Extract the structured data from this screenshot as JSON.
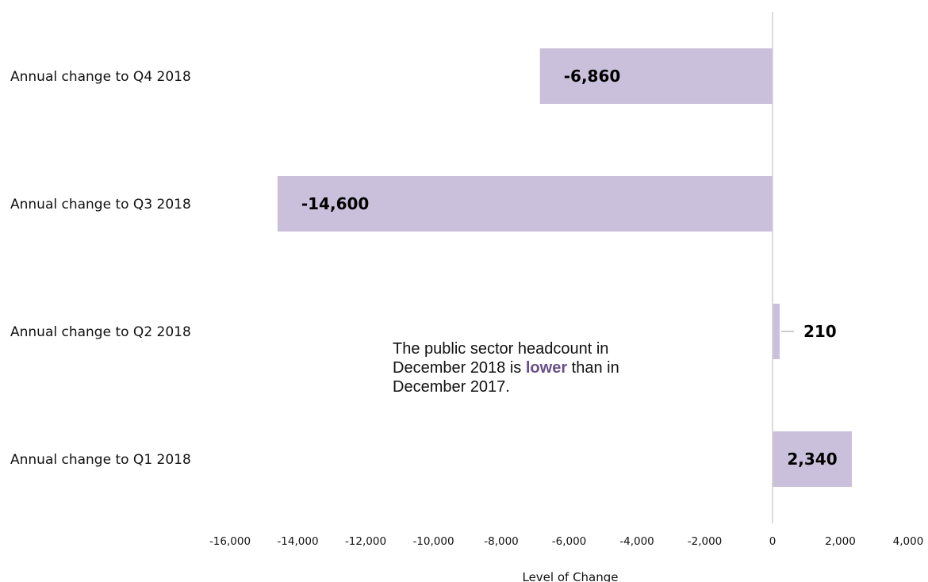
{
  "chart_data": {
    "type": "bar",
    "orientation": "horizontal",
    "categories": [
      "Annual change to Q4 2018",
      "Annual change to Q3 2018",
      "Annual change to Q2 2018",
      "Annual change to Q1 2018"
    ],
    "values": [
      -6860,
      -14600,
      210,
      2340
    ],
    "data_labels": [
      "-6,860",
      "-14,600",
      "210",
      "2,340"
    ],
    "xlabel": "Level of Change",
    "xlim": [
      -16000,
      4000
    ],
    "x_ticks": [
      -16000,
      -14000,
      -12000,
      -10000,
      -8000,
      -6000,
      -4000,
      -2000,
      0,
      2000,
      4000
    ],
    "x_tick_labels": [
      "-16,000",
      "-14,000",
      "-12,000",
      "-10,000",
      "-8,000",
      "-6,000",
      "-4,000",
      "-2,000",
      "0",
      "2,000",
      "4,000"
    ],
    "grid": false,
    "legend": "none",
    "bar_color": "#cbc0dc",
    "axis_color": "#d0d0d0"
  },
  "annotation": {
    "text_before": "The public sector headcount in December 2018 is ",
    "highlight": "lower",
    "text_after": " than in December 2017.",
    "highlight_color": "#6b4f8a"
  }
}
